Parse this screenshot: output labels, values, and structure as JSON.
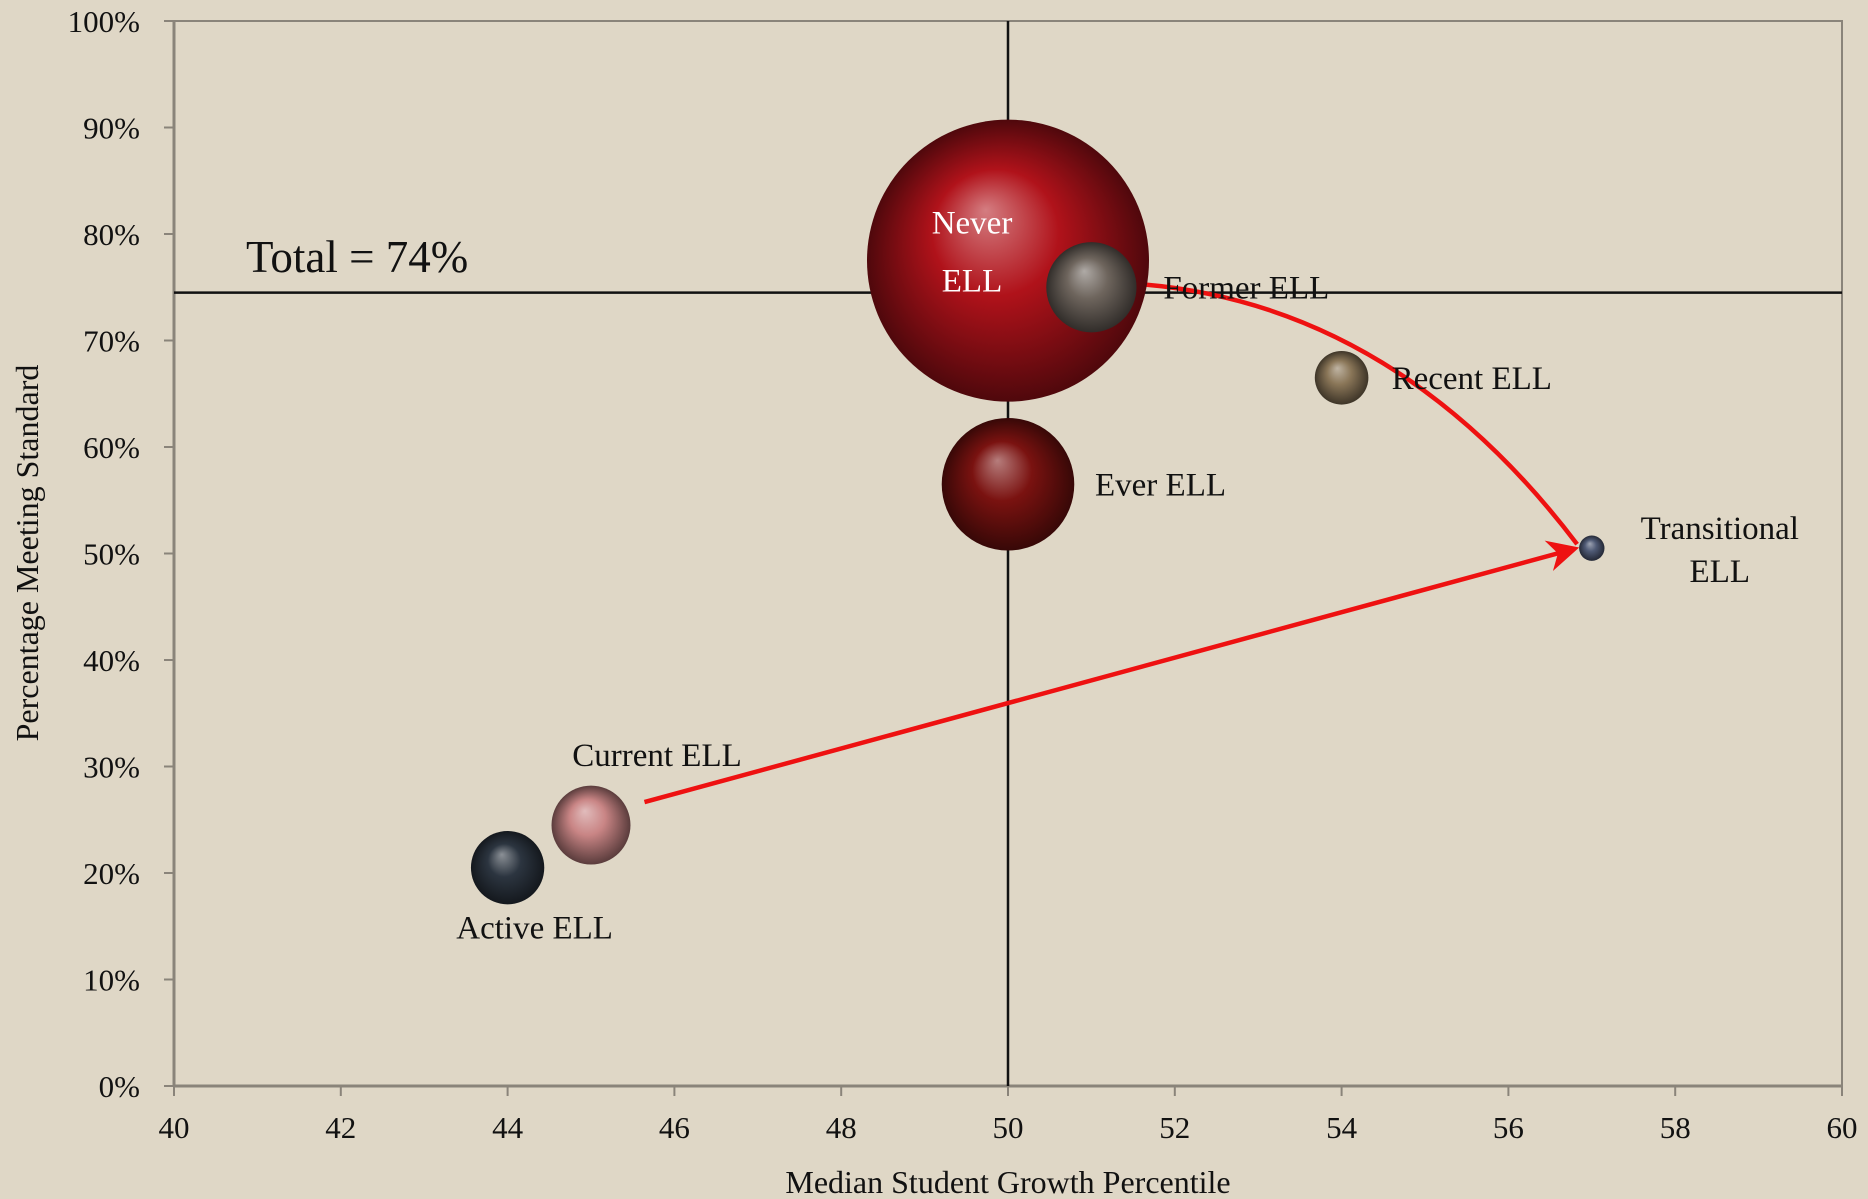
{
  "chart_data": {
    "type": "scatter",
    "xlabel": "Median Student Growth Percentile",
    "ylabel": "Percentage Meeting Standard",
    "xlim": [
      40,
      60
    ],
    "ylim": [
      0,
      100
    ],
    "x_ticks": [
      "40",
      "42",
      "44",
      "46",
      "48",
      "50",
      "52",
      "54",
      "56",
      "58",
      "60"
    ],
    "y_ticks": [
      "0%",
      "10%",
      "20%",
      "30%",
      "40%",
      "50%",
      "60%",
      "70%",
      "80%",
      "90%",
      "100%"
    ],
    "reference_lines": {
      "vertical_x": 50,
      "horizontal_y": 74.5,
      "total_label": "Total = 74%"
    },
    "points": [
      {
        "label": "Never ELL",
        "label_lines": [
          "Never",
          "ELL"
        ],
        "x": 50.0,
        "y": 77.5,
        "relative_size": 1.0,
        "color": "#b0121a",
        "label_color": "#ffffff"
      },
      {
        "label": "Ever ELL",
        "label_lines": [
          "Ever ELL"
        ],
        "x": 50.0,
        "y": 56.5,
        "relative_size": 0.47,
        "color": "#7a1210",
        "label_color": "#111111"
      },
      {
        "label": "Former ELL",
        "label_lines": [
          "Former ELL"
        ],
        "x": 51.0,
        "y": 75.0,
        "relative_size": 0.32,
        "color": "#6e655d",
        "label_color": "#111111"
      },
      {
        "label": "Recent ELL",
        "label_lines": [
          "Recent ELL"
        ],
        "x": 54.0,
        "y": 66.5,
        "relative_size": 0.19,
        "color": "#8a7658",
        "label_color": "#111111"
      },
      {
        "label": "Transitional ELL",
        "label_lines": [
          "Transitional",
          "ELL"
        ],
        "x": 57.0,
        "y": 50.5,
        "relative_size": 0.09,
        "color": "#4f5a75",
        "label_color": "#111111"
      },
      {
        "label": "Current ELL",
        "label_lines": [
          "Current ELL"
        ],
        "x": 45.0,
        "y": 24.5,
        "relative_size": 0.28,
        "color": "#c98585",
        "label_color": "#111111"
      },
      {
        "label": "Active ELL",
        "label_lines": [
          "Active ELL"
        ],
        "x": 44.0,
        "y": 20.5,
        "relative_size": 0.26,
        "color": "#2c3540",
        "label_color": "#111111"
      }
    ],
    "arrows": [
      {
        "from": "Current ELL",
        "to": "Transitional ELL",
        "color": "#ee1111"
      },
      {
        "from": "Transitional ELL",
        "to": "Former ELL",
        "color": "#ee1111",
        "curved": true
      }
    ],
    "grid": false,
    "legend": "none"
  }
}
